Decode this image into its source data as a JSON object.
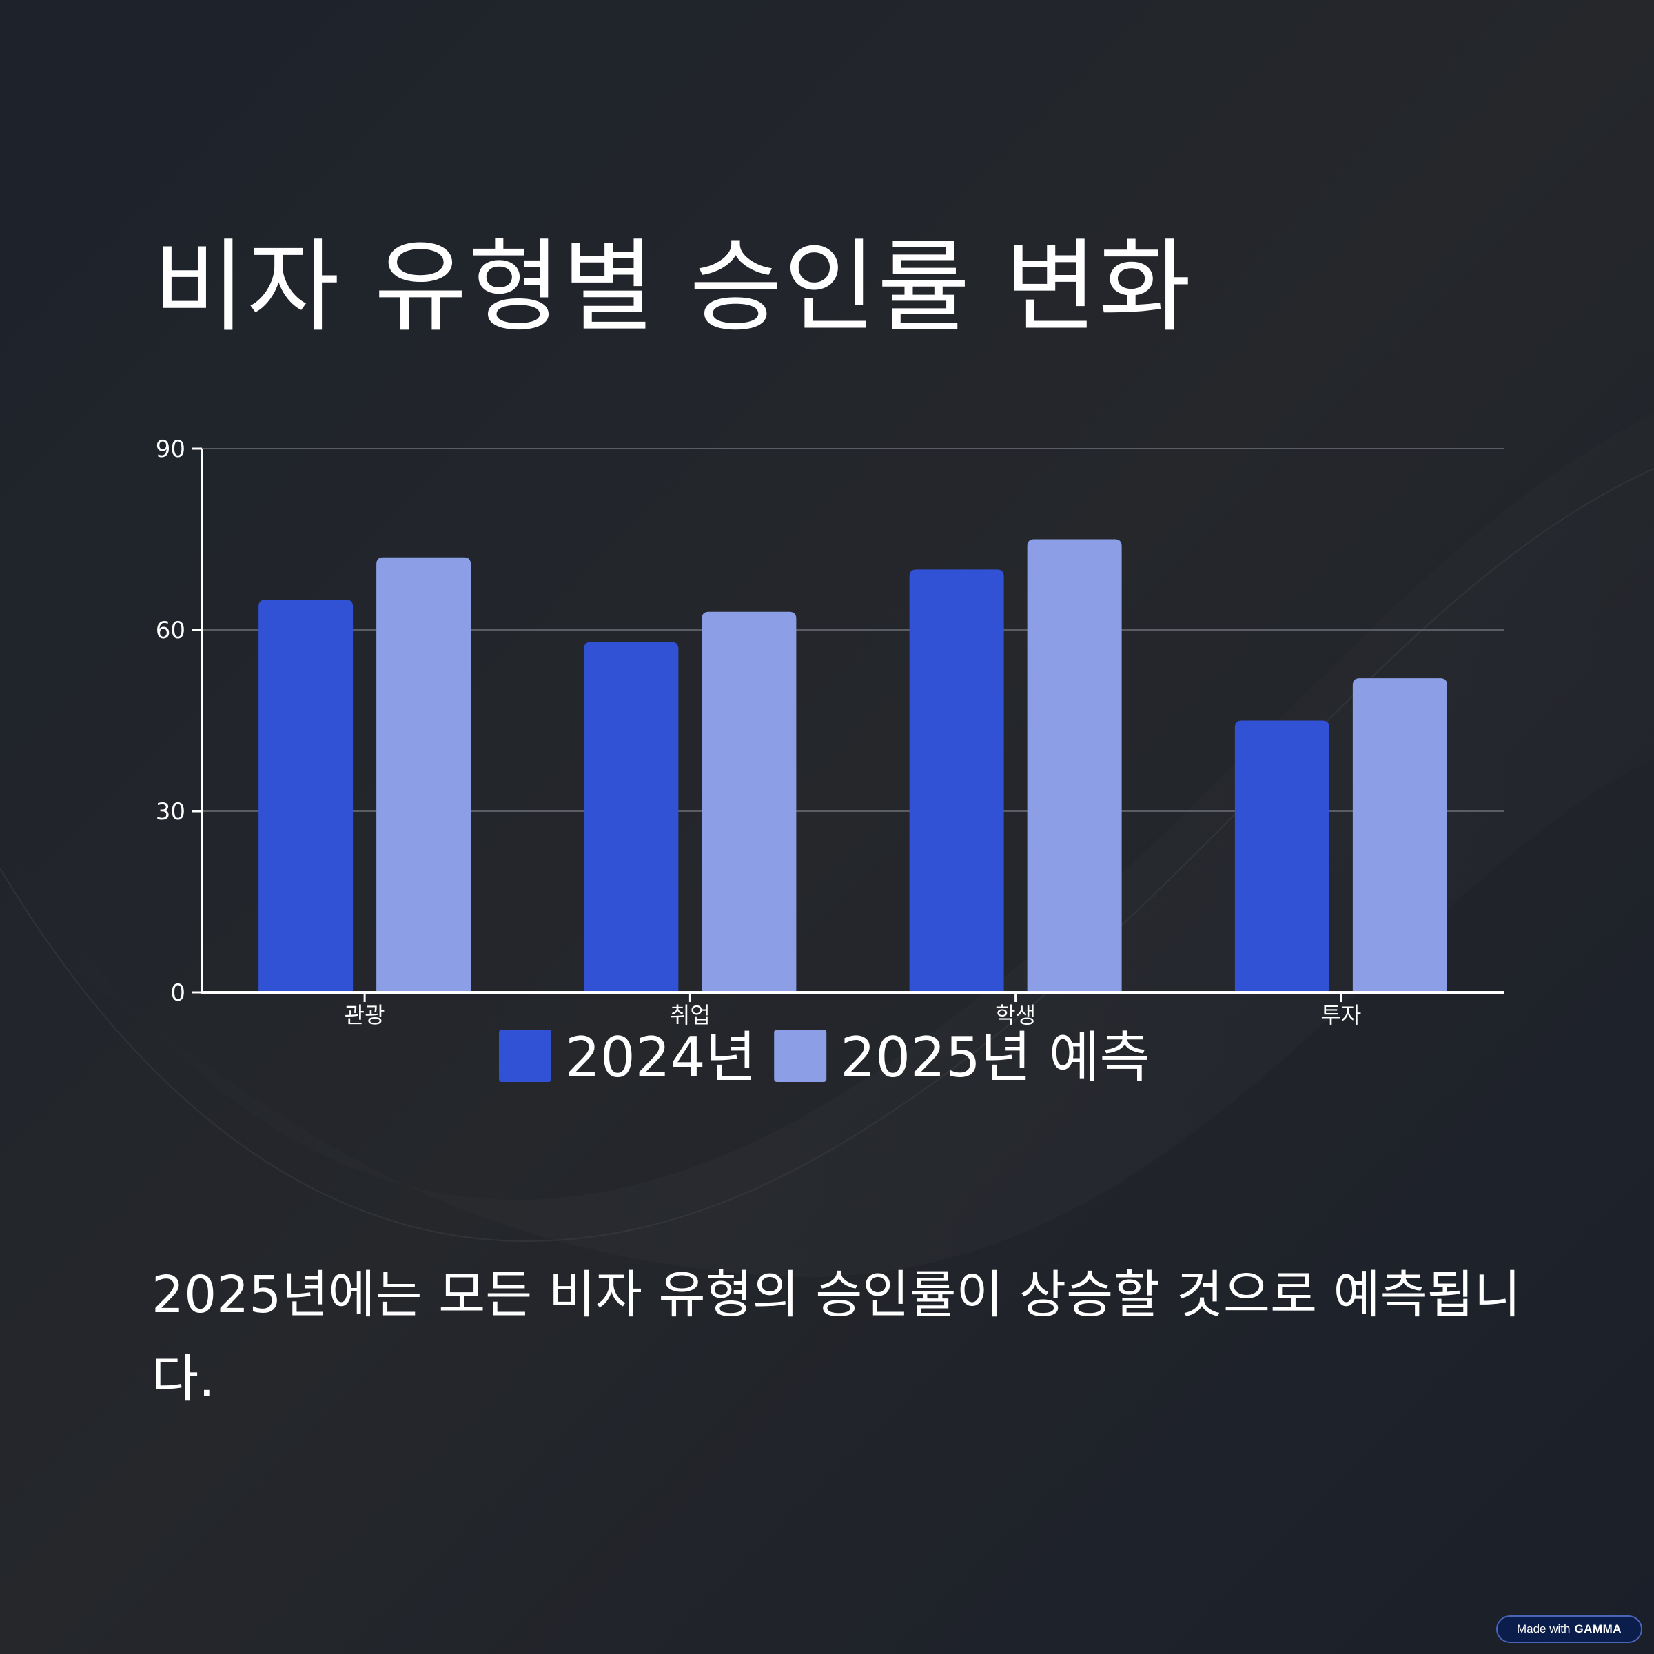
{
  "slide": {
    "title": "비자 유형별 승인률 변화",
    "caption": "2025년에는 모든 비자 유형의 승인률이 상승할 것으로 예측됩니다."
  },
  "badge": {
    "prefix": "Made with",
    "brand": "GAMMA"
  },
  "chart_data": {
    "type": "bar",
    "title": "",
    "xlabel": "",
    "ylabel": "",
    "categories": [
      "관광",
      "취업",
      "학생",
      "투자"
    ],
    "series": [
      {
        "name": "2024년",
        "values": [
          65,
          58,
          70,
          45
        ],
        "color": "#3152d4"
      },
      {
        "name": "2025년 예측",
        "values": [
          72,
          63,
          75,
          52
        ],
        "color": "#8c9fe6"
      }
    ],
    "ylim": [
      0,
      90
    ],
    "yticks": [
      0,
      30,
      60,
      90
    ],
    "grid": true,
    "legend": "bottom-center"
  }
}
